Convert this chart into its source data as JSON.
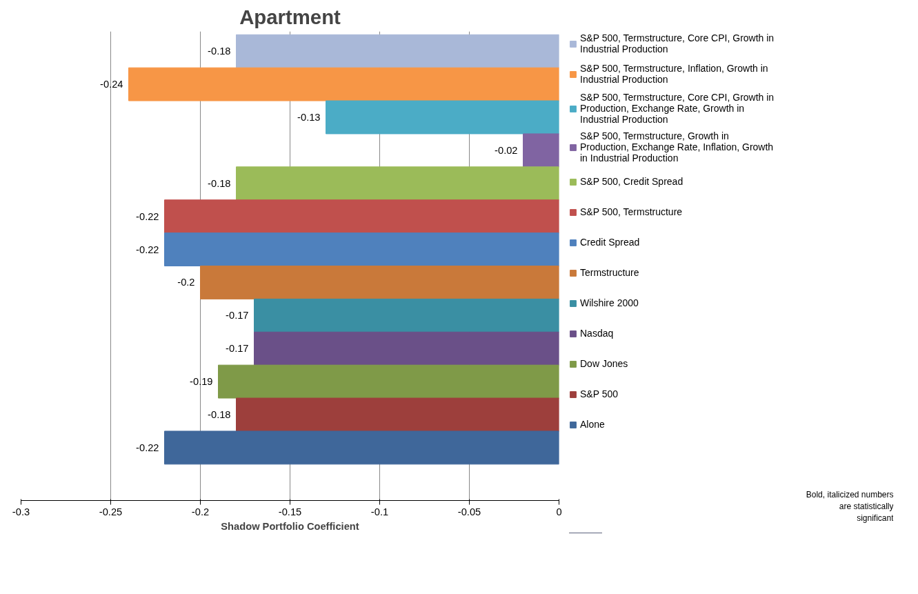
{
  "chart_data": {
    "type": "bar",
    "orientation": "horizontal",
    "title": "Apartment",
    "xlabel": "Shadow Portfolio Coefficient",
    "categories": [
      null
    ],
    "xlim": [
      -0.3,
      0
    ],
    "xticks": [
      -0.3,
      -0.25,
      -0.2,
      -0.15,
      -0.1,
      -0.05,
      0
    ],
    "grid": "x",
    "legend": "right",
    "data_labels": true,
    "annotations": [
      "Bold, italicized numbers are statistically significant"
    ],
    "series": [
      {
        "name": "S&P 500, Termstructure, Core CPI, Growth in Industrial Production",
        "color": "#a9b8d8",
        "values": [
          -0.18
        ]
      },
      {
        "name": "S&P 500, Termstructure, Inflation, Growth in Industrial Production",
        "color": "#f79646",
        "values": [
          -0.24
        ]
      },
      {
        "name": "S&P 500, Termstructure, Core CPI, Growth in Production, Exchange Rate, Growth in Industrial Production",
        "color": "#4bacc6",
        "values": [
          -0.13
        ]
      },
      {
        "name": "S&P 500, Termstructure, Growth in Production, Exchange Rate, Inflation, Growth in Industrial Production",
        "color": "#8064a2",
        "values": [
          -0.02
        ]
      },
      {
        "name": "S&P 500, Credit Spread",
        "color": "#9bbb59",
        "values": [
          -0.18
        ]
      },
      {
        "name": "S&P 500, Termstructure",
        "color": "#c0504d",
        "values": [
          -0.22
        ]
      },
      {
        "name": "Credit Spread",
        "color": "#4f81bd",
        "values": [
          -0.22
        ]
      },
      {
        "name": "Termstructure",
        "color": "#c9793a",
        "values": [
          -0.2
        ]
      },
      {
        "name": "Wilshire 2000",
        "color": "#3a8fa3",
        "values": [
          -0.17
        ]
      },
      {
        "name": "Nasdaq",
        "color": "#6a5088",
        "values": [
          -0.17
        ]
      },
      {
        "name": "Dow Jones",
        "color": "#7f9a48",
        "values": [
          -0.19
        ]
      },
      {
        "name": "S&P 500",
        "color": "#9d3f3c",
        "values": [
          -0.18
        ]
      },
      {
        "name": "Alone",
        "color": "#3f679a",
        "values": [
          -0.22
        ]
      }
    ]
  }
}
